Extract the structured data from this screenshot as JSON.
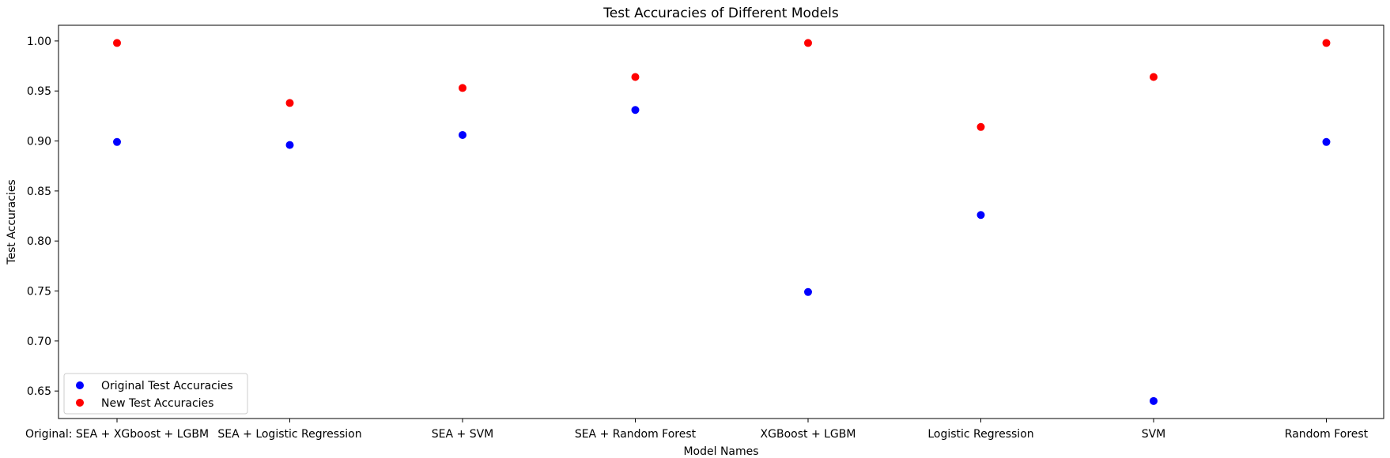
{
  "chart_data": {
    "type": "scatter",
    "title": "Test Accuracies of Different Models",
    "xlabel": "Model Names",
    "ylabel": "Test Accuracies",
    "categories": [
      "Original: SEA + XGboost + LGBM",
      "SEA + Logistic Regression",
      "SEA + SVM",
      "SEA + Random Forest",
      "XGBoost + LGBM",
      "Logistic Regression",
      "SVM",
      "Random Forest"
    ],
    "series": [
      {
        "name": "Original Test Accuracies",
        "color": "#0000ff",
        "values": [
          0.899,
          0.896,
          0.906,
          0.931,
          0.749,
          0.826,
          0.64,
          0.899
        ]
      },
      {
        "name": "New Test Accuracies",
        "color": "#ff0000",
        "values": [
          0.998,
          0.938,
          0.953,
          0.964,
          0.998,
          0.914,
          0.964,
          0.998
        ]
      }
    ],
    "ylim": [
      0.6225,
      1.0157
    ],
    "yticks": [
      "0.65",
      "0.70",
      "0.75",
      "0.80",
      "0.85",
      "0.90",
      "0.95",
      "1.00"
    ],
    "grid": false,
    "legend": "lower-left"
  }
}
